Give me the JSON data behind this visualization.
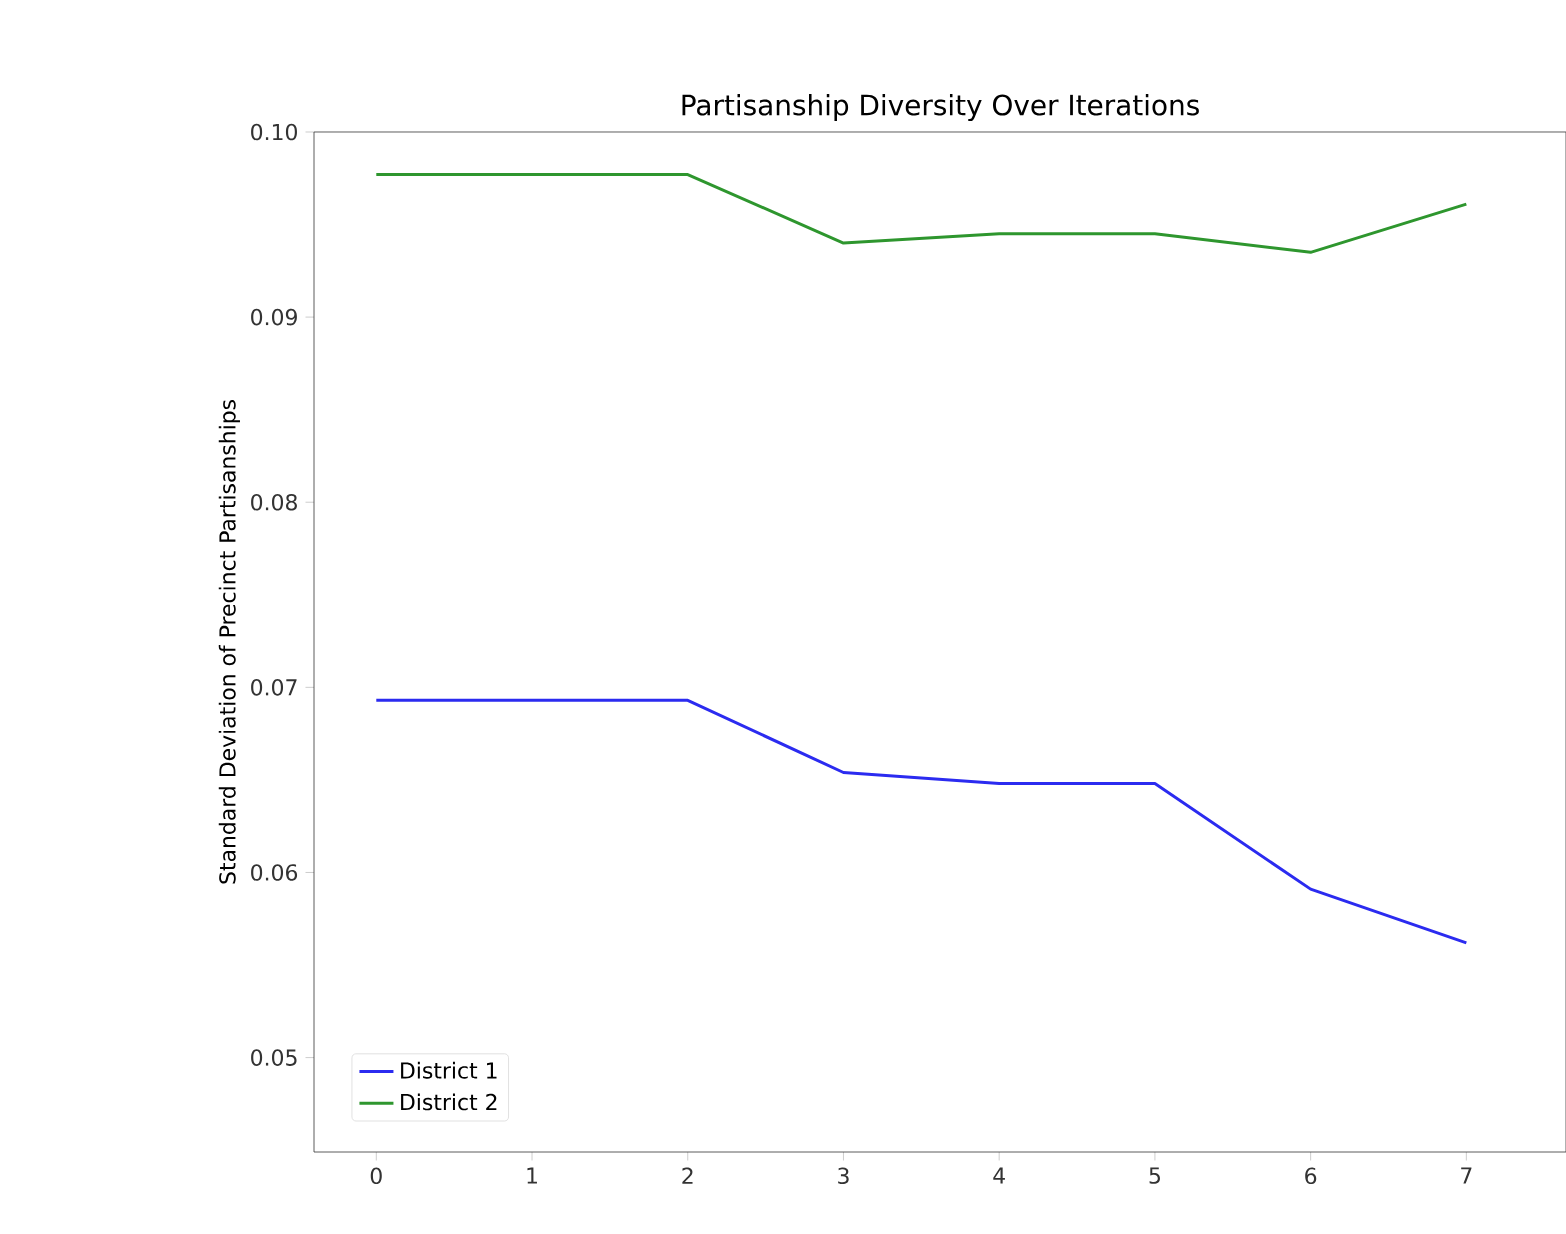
{
  "chart_data": {
    "type": "line",
    "title": "Partisanship Diversity Over Iterations",
    "ylabel": "Standard Deviation of Precinct Partisanships",
    "x": [
      0,
      1,
      2,
      3,
      4,
      5,
      6,
      7
    ],
    "series": [
      {
        "name": "District 1",
        "color": "#2b2bf0",
        "values": [
          0.0693,
          0.0693,
          0.0693,
          0.0654,
          0.0648,
          0.0648,
          0.0591,
          0.0562
        ]
      },
      {
        "name": "District 2",
        "color": "#2e962e",
        "values": [
          0.0977,
          0.0977,
          0.0977,
          0.094,
          0.0945,
          0.0945,
          0.0935,
          0.0961
        ]
      }
    ],
    "xlim": [
      -0.4,
      7.64
    ],
    "ylim": [
      0.0449,
      0.1
    ],
    "xticks": [
      0,
      1,
      2,
      3,
      4,
      5,
      6,
      7
    ],
    "yticks": [
      0.05,
      0.06,
      0.07,
      0.08,
      0.09,
      {
        "value": 0.1,
        "label": "0.10"
      }
    ],
    "legend": "bottom left",
    "grid": false,
    "marker": "none",
    "line_style": "solid"
  }
}
